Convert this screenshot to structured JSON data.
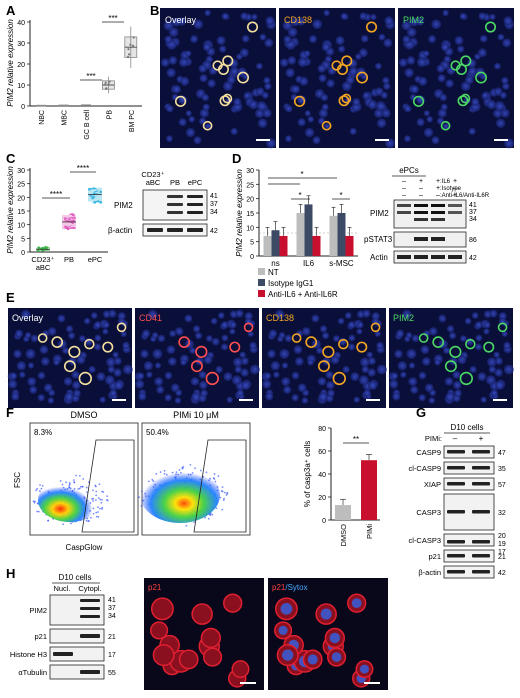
{
  "panels": {
    "A": {
      "letter": "A",
      "ylabel": "PIM2 relative expression",
      "sig": "***",
      "chart_data": {
        "type": "box",
        "categories": [
          "NBC",
          "MBC",
          "GC B cell",
          "PB",
          "BM PC"
        ],
        "values": [
          0.2,
          0.3,
          0.4,
          10,
          28
        ],
        "ylim": [
          0,
          40
        ],
        "yticks": [
          0,
          10,
          20,
          30,
          40
        ]
      }
    },
    "B": {
      "letter": "B",
      "labels": [
        {
          "text": "Overlay",
          "color": "#ffffff"
        },
        {
          "text": "CD138",
          "color": "#f5a623"
        },
        {
          "text": "PIM2",
          "color": "#4cd964"
        }
      ]
    },
    "C": {
      "letter": "C",
      "ylabel": "PIM2 relative expression",
      "sig": "****",
      "chart_data": {
        "type": "scatter",
        "categories": [
          "CD23⁺\naBC",
          "PB",
          "ePC"
        ],
        "values": [
          1,
          11,
          21
        ],
        "colors": [
          "#3cb44b",
          "#e05fbf",
          "#39b7e0"
        ],
        "ylim": [
          0,
          30
        ],
        "yticks": [
          0,
          5,
          10,
          15,
          20,
          25,
          30
        ]
      },
      "blot": {
        "header_1": "CD23⁺",
        "header_2": "aBC",
        "col_pb": "PB",
        "col_epc": "ePC",
        "rows": [
          {
            "label": "PIM2",
            "markers": [
              "41",
              "37",
              "34"
            ]
          },
          {
            "label": "β-actin",
            "markers": [
              "42"
            ]
          }
        ]
      }
    },
    "D": {
      "letter": "D",
      "ylabel": "PIM2 relative expression",
      "sig": "*",
      "chart_data": {
        "type": "bar",
        "categories": [
          "ns",
          "IL6",
          "s-MSC"
        ],
        "series": [
          {
            "name": "NT",
            "color": "#bdbdbd",
            "values": [
              7,
              15,
              14
            ]
          },
          {
            "name": "Isotype IgG1",
            "color": "#3d4a66",
            "values": [
              9,
              18,
              15
            ]
          },
          {
            "name": "Anti-IL6 + Anti-IL6R",
            "color": "#c8102e",
            "values": [
              7,
              7,
              7
            ]
          }
        ],
        "ylim": [
          0,
          30
        ],
        "yticks": [
          0,
          5,
          10,
          15,
          20,
          25,
          30
        ]
      },
      "blot": {
        "title": "ePCs",
        "conditions": [
          {
            "label": ":IL6",
            "signs": [
              "–",
              "+",
              "+",
              "+"
            ]
          },
          {
            "label": ":Isotype",
            "signs": [
              "–",
              "–",
              "+",
              "–"
            ]
          },
          {
            "label": ":Anti-IL6/Anti-IL6R",
            "signs": [
              "–",
              "–",
              "–",
              "+"
            ]
          }
        ],
        "rows": [
          {
            "label": "PIM2",
            "markers": [
              "41",
              "37",
              "34"
            ]
          },
          {
            "label": "pSTAT3",
            "markers": [
              "86"
            ]
          },
          {
            "label": "Actin",
            "markers": [
              "42"
            ]
          }
        ]
      }
    },
    "E": {
      "letter": "E",
      "labels": [
        {
          "text": "Overlay",
          "color": "#ffffff"
        },
        {
          "text": "CD41",
          "color": "#ff5050"
        },
        {
          "text": "CD138",
          "color": "#f5a623"
        },
        {
          "text": "PIM2",
          "color": "#4cd964"
        }
      ]
    },
    "F": {
      "letter": "F",
      "flow": [
        {
          "title": "DMSO",
          "percent": "8.3%"
        },
        {
          "title": "PIMi 10 μM",
          "percent": "50.4%"
        }
      ],
      "xlabel": "CaspGlow",
      "ylabel": "FSC",
      "bar_ylabel": "% of casp3a⁺ cells",
      "sig": "**",
      "chart_data": {
        "type": "bar",
        "categories": [
          "DMSO",
          "PIMi"
        ],
        "values": [
          13,
          52
        ],
        "colors": [
          "#bdbdbd",
          "#c8102e"
        ],
        "ylim": [
          0,
          80
        ],
        "yticks": [
          0,
          20,
          40,
          60,
          80
        ]
      }
    },
    "G": {
      "letter": "G",
      "title": "D10 cells",
      "treat_label": "PIMi:",
      "signs": [
        "–",
        "+"
      ],
      "rows": [
        {
          "label": "CASP9",
          "markers": [
            "47"
          ]
        },
        {
          "label": "cl-CASP9",
          "markers": [
            "35"
          ]
        },
        {
          "label": "XIAP",
          "markers": [
            "57"
          ]
        },
        {
          "label": "CASP3",
          "markers": [
            "32"
          ]
        },
        {
          "label": "cl-CASP3",
          "markers": [
            "20",
            "19",
            "17"
          ]
        },
        {
          "label": "p21",
          "markers": [
            "21"
          ]
        },
        {
          "label": "β-actin",
          "markers": [
            "42"
          ]
        }
      ]
    },
    "H": {
      "letter": "H",
      "title": "D10 cells",
      "cols": [
        "Nucl.",
        "Cytopl."
      ],
      "rows": [
        {
          "label": "PIM2",
          "markers": [
            "41",
            "37",
            "34"
          ]
        },
        {
          "label": "p21",
          "markers": [
            "21"
          ]
        },
        {
          "label": "Histone H3",
          "markers": [
            "17"
          ]
        },
        {
          "label": "αTubulin",
          "markers": [
            "55"
          ]
        }
      ],
      "labels": [
        {
          "text": "p21",
          "color": "#ff4040"
        },
        {
          "text": "p21",
          "color": "#ff4040",
          "extra": "/Sytox",
          "extra_color": "#4aa8ff"
        }
      ]
    }
  }
}
